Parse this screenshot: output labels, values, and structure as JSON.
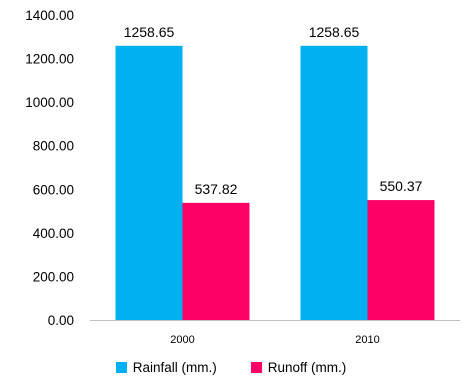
{
  "chart_data": {
    "type": "bar",
    "categories": [
      "2000",
      "2010"
    ],
    "series": [
      {
        "name": "Rainfall (mm.)",
        "values": [
          1258.65,
          1258.65
        ],
        "labels": [
          "1258.65",
          "1258.65"
        ],
        "color": "#00b0f0"
      },
      {
        "name": "Runoff (mm.)",
        "values": [
          537.82,
          550.37
        ],
        "labels": [
          "537.82",
          "550.37"
        ],
        "color": "#ff0066"
      }
    ],
    "yticks": [
      "0.00",
      "200.00",
      "400.00",
      "600.00",
      "800.00",
      "1000.00",
      "1200.00",
      "1400.00"
    ],
    "ylim": [
      0,
      1400
    ],
    "grid": false,
    "legend": "bottom"
  }
}
